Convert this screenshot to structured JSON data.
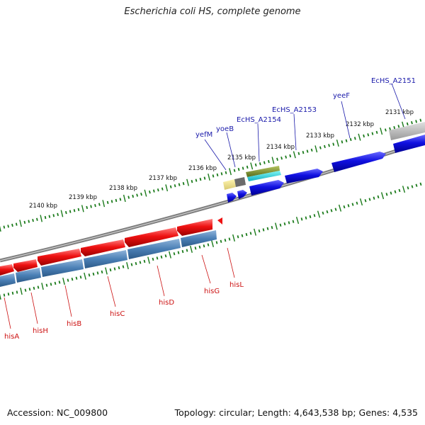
{
  "title": "Escherichia coli HS, complete genome",
  "footer": {
    "accession": "Accession: NC_009800",
    "summary": "Topology: circular; Length: 4,643,538 bp; Genes: 4,535"
  },
  "scale_labels": [
    "2131 kbp",
    "2132 kbp",
    "2133 kbp",
    "2134 kbp",
    "2135 kbp",
    "2136 kbp",
    "2137 kbp",
    "2138 kbp",
    "2139 kbp",
    "2140 kbp"
  ],
  "genes_forward": [
    "EcHS_A2151",
    "yeeF",
    "EcHS_A2153",
    "EcHS_A2154",
    "yoeB",
    "yefM"
  ],
  "genes_reverse": [
    "hisL",
    "hisG",
    "hisD",
    "hisC",
    "hisB",
    "hisH",
    "hisA"
  ],
  "colors": {
    "forward_gene": "#1010e0",
    "reverse_gene": "#ee1111",
    "cds_track": "#4a7fb5",
    "backbone": "#808080",
    "tick": "#1a7a1a",
    "forward_label": "#1a1aaa",
    "reverse_label": "#cc1111"
  }
}
